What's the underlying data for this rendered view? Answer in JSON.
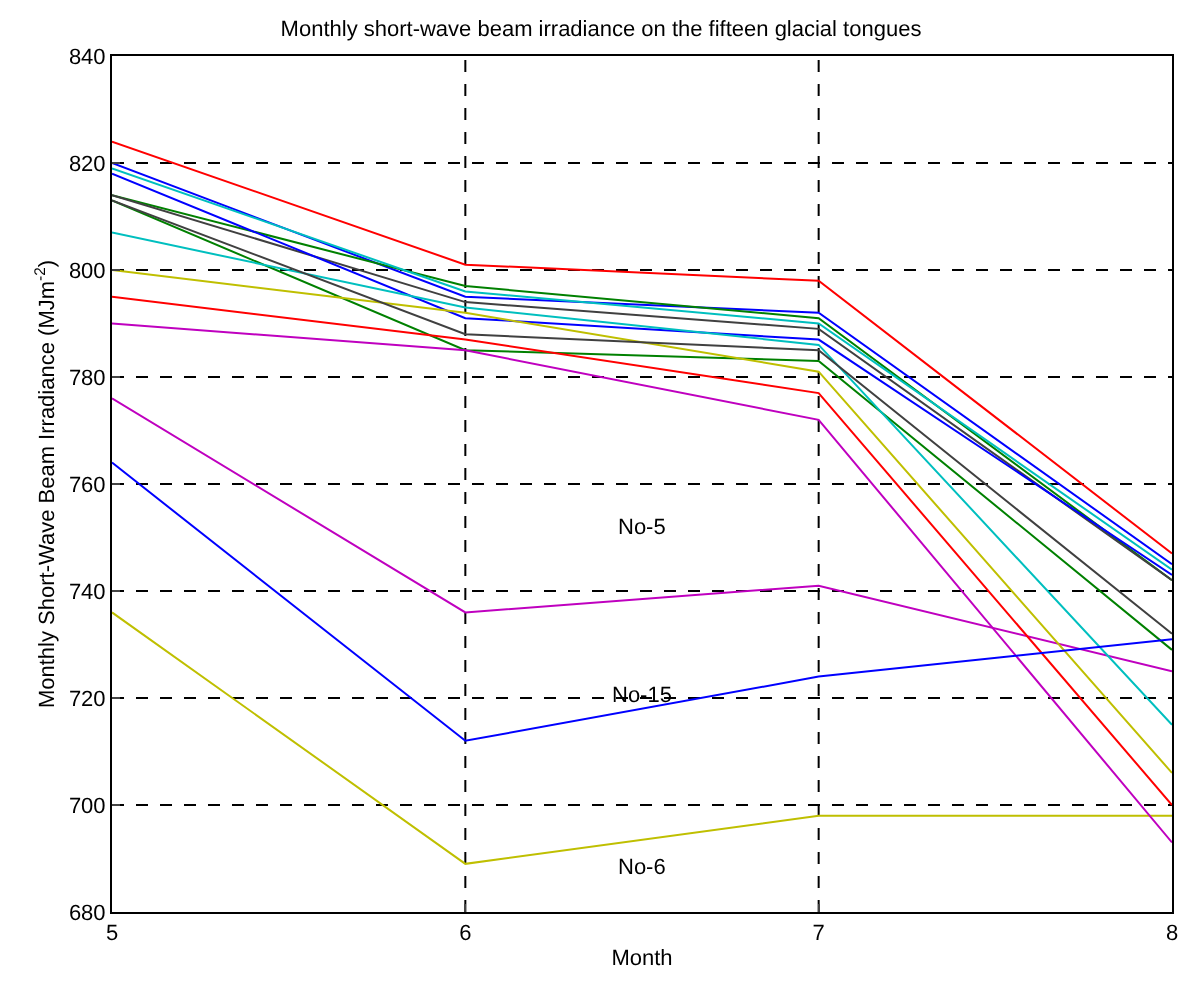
{
  "chart_data": {
    "type": "line",
    "title": "Monthly short-wave beam irradiance on the fifteen glacial tongues",
    "xlabel": "Month",
    "ylabel": "Monthly Short-Wave Beam Irradiance (MJm$^{-2}$)",
    "x": [
      5,
      6,
      7,
      8
    ],
    "xlim": [
      5,
      8
    ],
    "xticks": [
      5,
      6,
      7,
      8
    ],
    "ylim": [
      680,
      840
    ],
    "yticks": [
      680,
      700,
      720,
      740,
      760,
      780,
      800,
      820,
      840
    ],
    "grid": true,
    "legend": false,
    "marker": "none",
    "line_style": "solid",
    "series": [
      {
        "color": "#0000ff",
        "values": [
          820,
          795,
          792,
          745
        ]
      },
      {
        "color": "#008000",
        "values": [
          814,
          797,
          791,
          742
        ]
      },
      {
        "color": "#ff0000",
        "values": [
          824,
          801,
          798,
          747
        ]
      },
      {
        "color": "#00bfbf",
        "values": [
          819,
          796,
          790,
          744
        ]
      },
      {
        "name": "No-5",
        "color": "#bf00bf",
        "values": [
          776,
          736,
          741,
          725
        ]
      },
      {
        "name": "No-6",
        "color": "#bfbf00",
        "values": [
          736,
          689,
          698,
          698
        ]
      },
      {
        "color": "#404040",
        "values": [
          814,
          794,
          789,
          742
        ]
      },
      {
        "color": "#0000ff",
        "values": [
          818,
          791,
          787,
          743
        ]
      },
      {
        "color": "#008000",
        "values": [
          813,
          785,
          783,
          729
        ]
      },
      {
        "color": "#ff0000",
        "values": [
          795,
          787,
          777,
          700
        ]
      },
      {
        "color": "#00bfbf",
        "values": [
          807,
          793,
          786,
          715
        ]
      },
      {
        "color": "#bf00bf",
        "values": [
          790,
          785,
          772,
          693
        ]
      },
      {
        "color": "#bfbf00",
        "values": [
          800,
          792,
          781,
          706
        ]
      },
      {
        "color": "#404040",
        "values": [
          813,
          788,
          785,
          732
        ]
      },
      {
        "name": "No-15",
        "color": "#0000ff",
        "values": [
          764,
          712,
          724,
          731
        ]
      }
    ]
  }
}
